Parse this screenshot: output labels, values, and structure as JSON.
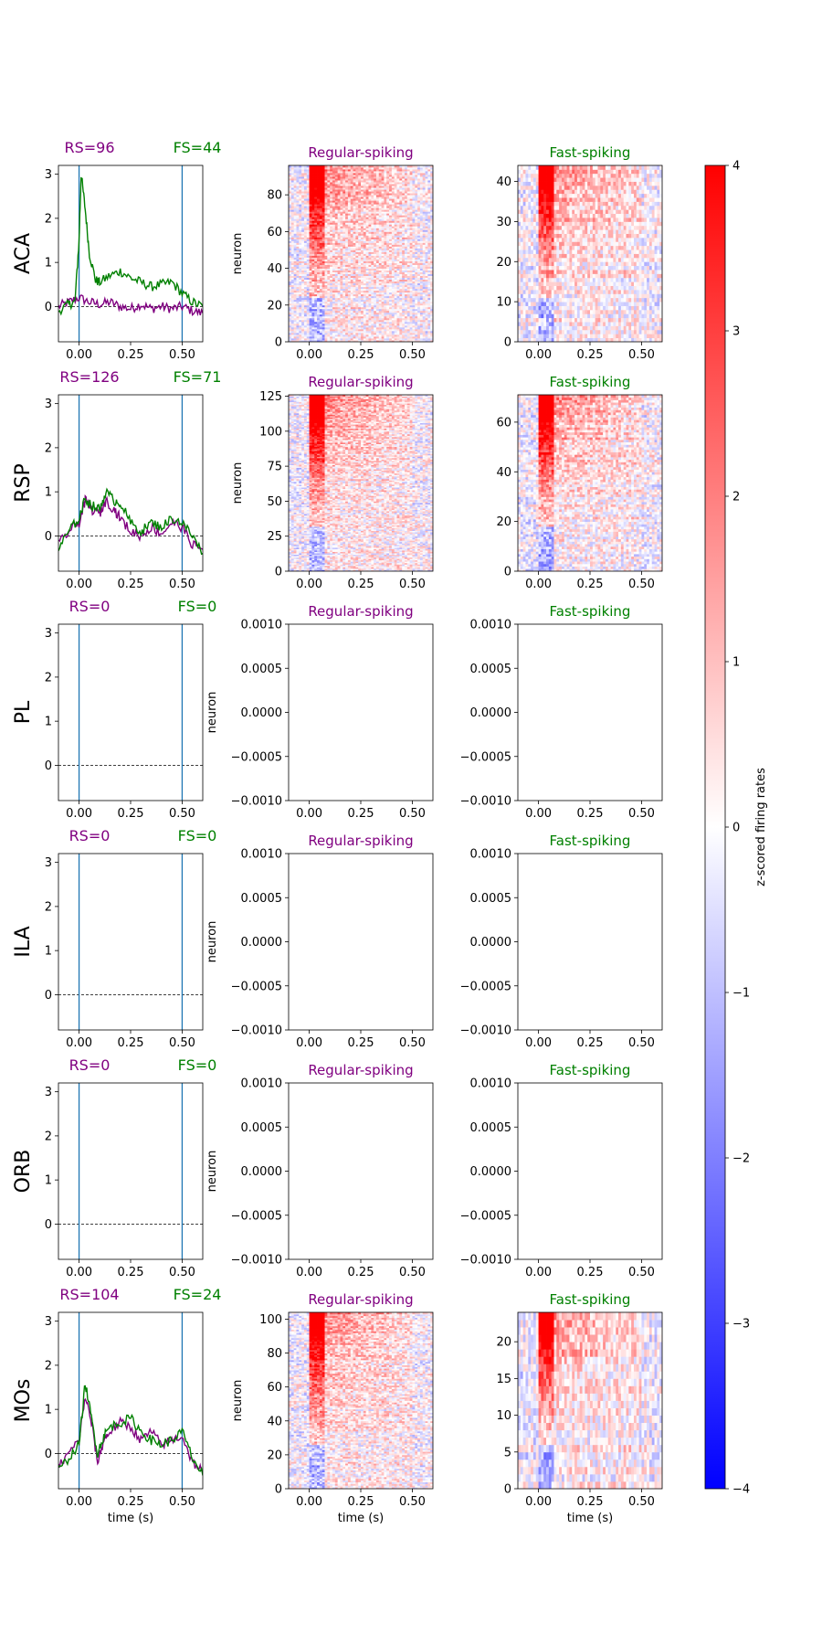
{
  "colors": {
    "rs": "#800080",
    "fs": "#008000",
    "vline": "#1f77b4",
    "cmap_low": "#0000ff",
    "cmap_mid": "#ffffff",
    "cmap_high": "#ff0000"
  },
  "labels": {
    "rs_title": "Regular-spiking",
    "fs_title": "Fast-spiking",
    "neuron": "neuron",
    "time": "time (s)",
    "colorbar": "z-scored firing rates"
  },
  "colorbar": {
    "ticks": [
      "4",
      "3",
      "2",
      "1",
      "0",
      "−1",
      "−2",
      "−3",
      "−4"
    ],
    "range": [
      -4,
      4
    ]
  },
  "chart_data": {
    "type": "line",
    "x_ticks": [
      "0.00",
      "0.25",
      "0.50"
    ],
    "xlim": [
      -0.1,
      0.6
    ],
    "psth_ylim": [
      -0.8,
      3.2
    ],
    "psth_yticks": [
      "0",
      "1",
      "2",
      "3"
    ],
    "empty_yticks": [
      "0.0010",
      "0.0005",
      "0.0000",
      "−0.0005",
      "−0.0010"
    ],
    "stimulus_lines": [
      0.0,
      0.5
    ],
    "regions": [
      {
        "name": "ACA",
        "rs_label": "RS=96",
        "fs_label": "FS=44",
        "rs_count": 96,
        "fs_count": 44,
        "rs_yticks": [
          "0",
          "20",
          "40",
          "60",
          "80"
        ],
        "fs_yticks": [
          "0",
          "10",
          "20",
          "30",
          "40"
        ],
        "rs_trace": [
          [
            -0.1,
            0.0
          ],
          [
            -0.05,
            0.1
          ],
          [
            0.0,
            0.2
          ],
          [
            0.05,
            0.1
          ],
          [
            0.1,
            0.05
          ],
          [
            0.15,
            0.1
          ],
          [
            0.2,
            0.0
          ],
          [
            0.25,
            -0.05
          ],
          [
            0.3,
            0.05
          ],
          [
            0.35,
            -0.05
          ],
          [
            0.4,
            0.0
          ],
          [
            0.45,
            -0.05
          ],
          [
            0.5,
            0.0
          ],
          [
            0.55,
            -0.1
          ],
          [
            0.6,
            -0.15
          ]
        ],
        "fs_trace": [
          [
            -0.1,
            -0.1
          ],
          [
            -0.05,
            0.05
          ],
          [
            -0.02,
            0.1
          ],
          [
            0.0,
            1.5
          ],
          [
            0.01,
            3.0
          ],
          [
            0.03,
            2.2
          ],
          [
            0.05,
            1.2
          ],
          [
            0.08,
            0.6
          ],
          [
            0.1,
            0.55
          ],
          [
            0.15,
            0.7
          ],
          [
            0.2,
            0.8
          ],
          [
            0.25,
            0.65
          ],
          [
            0.3,
            0.55
          ],
          [
            0.35,
            0.45
          ],
          [
            0.4,
            0.5
          ],
          [
            0.45,
            0.55
          ],
          [
            0.5,
            0.3
          ],
          [
            0.55,
            0.1
          ],
          [
            0.6,
            0.0
          ]
        ]
      },
      {
        "name": "RSP",
        "rs_label": "RS=126",
        "fs_label": "FS=71",
        "rs_count": 126,
        "fs_count": 71,
        "rs_yticks": [
          "0",
          "25",
          "50",
          "75",
          "100",
          "125"
        ],
        "fs_yticks": [
          "0",
          "20",
          "40",
          "60"
        ],
        "rs_trace": [
          [
            -0.1,
            -0.2
          ],
          [
            -0.05,
            0.1
          ],
          [
            0.0,
            0.3
          ],
          [
            0.03,
            0.8
          ],
          [
            0.06,
            0.6
          ],
          [
            0.1,
            0.5
          ],
          [
            0.13,
            0.8
          ],
          [
            0.17,
            0.6
          ],
          [
            0.2,
            0.4
          ],
          [
            0.25,
            0.1
          ],
          [
            0.3,
            0.0
          ],
          [
            0.35,
            0.2
          ],
          [
            0.4,
            0.05
          ],
          [
            0.45,
            0.3
          ],
          [
            0.5,
            0.2
          ],
          [
            0.55,
            -0.2
          ],
          [
            0.6,
            -0.3
          ]
        ],
        "fs_trace": [
          [
            -0.1,
            -0.3
          ],
          [
            -0.05,
            0.1
          ],
          [
            0.0,
            0.4
          ],
          [
            0.03,
            0.85
          ],
          [
            0.06,
            0.7
          ],
          [
            0.1,
            0.6
          ],
          [
            0.13,
            1.0
          ],
          [
            0.17,
            0.8
          ],
          [
            0.2,
            0.75
          ],
          [
            0.25,
            0.3
          ],
          [
            0.3,
            0.1
          ],
          [
            0.35,
            0.3
          ],
          [
            0.4,
            0.2
          ],
          [
            0.45,
            0.4
          ],
          [
            0.5,
            0.3
          ],
          [
            0.55,
            0.0
          ],
          [
            0.6,
            -0.4
          ]
        ]
      },
      {
        "name": "PL",
        "rs_label": "RS=0",
        "fs_label": "FS=0",
        "rs_count": 0,
        "fs_count": 0,
        "rs_yticks": [],
        "fs_yticks": [],
        "rs_trace": [],
        "fs_trace": []
      },
      {
        "name": "ILA",
        "rs_label": "RS=0",
        "fs_label": "FS=0",
        "rs_count": 0,
        "fs_count": 0,
        "rs_yticks": [],
        "fs_yticks": [],
        "rs_trace": [],
        "fs_trace": []
      },
      {
        "name": "ORB",
        "rs_label": "RS=0",
        "fs_label": "FS=0",
        "rs_count": 0,
        "fs_count": 0,
        "rs_yticks": [],
        "fs_yticks": [],
        "rs_trace": [],
        "fs_trace": []
      },
      {
        "name": "MOs",
        "rs_label": "RS=104",
        "fs_label": "FS=24",
        "rs_count": 104,
        "fs_count": 24,
        "rs_yticks": [
          "0",
          "20",
          "40",
          "60",
          "80",
          "100"
        ],
        "fs_yticks": [
          "0",
          "5",
          "10",
          "15",
          "20"
        ],
        "rs_trace": [
          [
            -0.1,
            -0.3
          ],
          [
            -0.05,
            0.0
          ],
          [
            0.0,
            0.3
          ],
          [
            0.03,
            1.3
          ],
          [
            0.06,
            0.7
          ],
          [
            0.09,
            -0.2
          ],
          [
            0.12,
            0.3
          ],
          [
            0.15,
            0.5
          ],
          [
            0.2,
            0.7
          ],
          [
            0.25,
            0.6
          ],
          [
            0.3,
            0.3
          ],
          [
            0.35,
            0.5
          ],
          [
            0.4,
            0.2
          ],
          [
            0.45,
            0.3
          ],
          [
            0.5,
            0.4
          ],
          [
            0.55,
            -0.2
          ],
          [
            0.6,
            -0.4
          ]
        ],
        "fs_trace": [
          [
            -0.1,
            -0.4
          ],
          [
            -0.05,
            -0.1
          ],
          [
            0.0,
            0.2
          ],
          [
            0.03,
            1.6
          ],
          [
            0.06,
            0.8
          ],
          [
            0.09,
            0.0
          ],
          [
            0.12,
            0.4
          ],
          [
            0.15,
            0.6
          ],
          [
            0.2,
            0.7
          ],
          [
            0.25,
            0.8
          ],
          [
            0.3,
            0.5
          ],
          [
            0.35,
            0.3
          ],
          [
            0.4,
            0.2
          ],
          [
            0.45,
            0.3
          ],
          [
            0.5,
            0.5
          ],
          [
            0.55,
            -0.1
          ],
          [
            0.6,
            -0.5
          ]
        ]
      }
    ]
  }
}
